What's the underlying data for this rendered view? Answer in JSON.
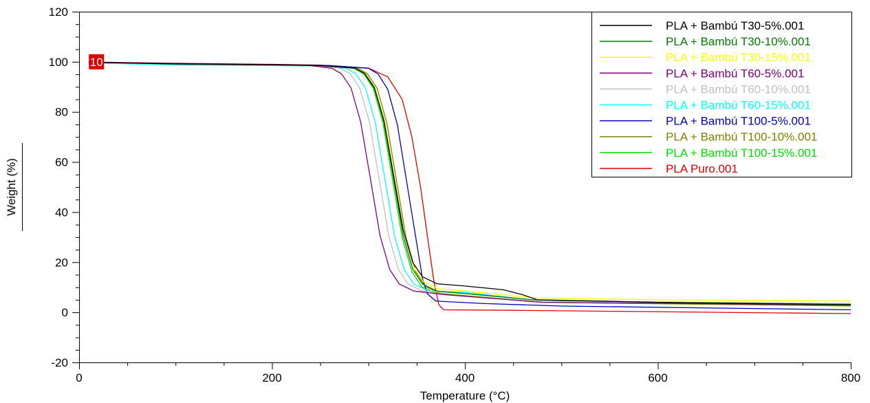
{
  "chart_data": {
    "type": "line",
    "title": "",
    "xlabel": "Temperature (°C)",
    "ylabel": "Weight (%)",
    "xlim": [
      0,
      800
    ],
    "ylim": [
      -20,
      120
    ],
    "xticks": [
      0,
      200,
      400,
      600,
      800
    ],
    "yticks": [
      -20,
      0,
      20,
      40,
      60,
      80,
      100,
      120
    ],
    "grid": false,
    "legend_position": "top-right",
    "annotation": {
      "text": "10",
      "x": 18,
      "y": 100,
      "color": "#e00000"
    },
    "series": [
      {
        "name": "PLA + Bambú T30-5%.001",
        "color": "#000000",
        "points": [
          [
            10,
            99.8
          ],
          [
            100,
            99.2
          ],
          [
            200,
            98.8
          ],
          [
            250,
            98.5
          ],
          [
            286,
            97.5
          ],
          [
            296,
            95.4
          ],
          [
            306,
            89.8
          ],
          [
            316,
            76.6
          ],
          [
            326,
            54.8
          ],
          [
            336,
            32.9
          ],
          [
            346,
            19.8
          ],
          [
            356,
            14.2
          ],
          [
            371,
            11.4
          ],
          [
            400,
            10.5
          ],
          [
            440,
            9
          ],
          [
            460,
            7
          ],
          [
            475,
            5
          ],
          [
            600,
            4
          ],
          [
            800,
            3
          ]
        ]
      },
      {
        "name": "PLA + Bambú T30-10%.001",
        "color": "#007a00",
        "points": [
          [
            10,
            99.8
          ],
          [
            100,
            99.1
          ],
          [
            200,
            98.7
          ],
          [
            250,
            98.5
          ],
          [
            286,
            97.4
          ],
          [
            296,
            95.2
          ],
          [
            306,
            89.5
          ],
          [
            316,
            75.9
          ],
          [
            326,
            53.3
          ],
          [
            336,
            30.6
          ],
          [
            346,
            17.1
          ],
          [
            356,
            11.3
          ],
          [
            371,
            8.5
          ],
          [
            400,
            7.5
          ],
          [
            470,
            5
          ],
          [
            600,
            4
          ],
          [
            800,
            3.2
          ]
        ]
      },
      {
        "name": "PLA + Bambú T30-15%.001",
        "color": "#ffff00",
        "points": [
          [
            10,
            99.8
          ],
          [
            100,
            99.1
          ],
          [
            200,
            98.7
          ],
          [
            250,
            98.5
          ],
          [
            287,
            97.4
          ],
          [
            297,
            95.3
          ],
          [
            307,
            89.6
          ],
          [
            317,
            76.1
          ],
          [
            327,
            53.8
          ],
          [
            337,
            31.4
          ],
          [
            347,
            18
          ],
          [
            357,
            12.2
          ],
          [
            372,
            9.4
          ],
          [
            400,
            8.5
          ],
          [
            470,
            5.8
          ],
          [
            600,
            5
          ],
          [
            800,
            4.5
          ]
        ]
      },
      {
        "name": "PLA + Bambú T60-5%.001",
        "color": "#800080",
        "points": [
          [
            10,
            99.9
          ],
          [
            100,
            99.3
          ],
          [
            200,
            98.8
          ],
          [
            240,
            98.5
          ],
          [
            262,
            97.4
          ],
          [
            272,
            95.2
          ],
          [
            282,
            89.5
          ],
          [
            292,
            75.9
          ],
          [
            302,
            53.3
          ],
          [
            312,
            30.6
          ],
          [
            322,
            17.1
          ],
          [
            332,
            11.3
          ],
          [
            347,
            8.5
          ],
          [
            380,
            7
          ],
          [
            480,
            4
          ],
          [
            800,
            3
          ]
        ]
      },
      {
        "name": "PLA + Bambú T60-10%.001",
        "color": "#c0c0c0",
        "points": [
          [
            10,
            99.8
          ],
          [
            100,
            99
          ],
          [
            200,
            98.6
          ],
          [
            245,
            98.5
          ],
          [
            271,
            97.4
          ],
          [
            281,
            95.2
          ],
          [
            291,
            89.5
          ],
          [
            301,
            75.9
          ],
          [
            311,
            53.3
          ],
          [
            321,
            30.6
          ],
          [
            331,
            17.1
          ],
          [
            341,
            11.3
          ],
          [
            356,
            8.5
          ],
          [
            400,
            7.5
          ],
          [
            480,
            4.5
          ],
          [
            800,
            3.5
          ]
        ]
      },
      {
        "name": "PLA + Bambú T60-15%.001",
        "color": "#00ffff",
        "points": [
          [
            10,
            99.6
          ],
          [
            100,
            98.7
          ],
          [
            200,
            98.5
          ],
          [
            250,
            98.3
          ],
          [
            277,
            97.4
          ],
          [
            287,
            95.2
          ],
          [
            297,
            89.5
          ],
          [
            307,
            75.9
          ],
          [
            317,
            53.3
          ],
          [
            327,
            30.6
          ],
          [
            337,
            17.1
          ],
          [
            347,
            11.3
          ],
          [
            362,
            8.5
          ],
          [
            400,
            8
          ],
          [
            480,
            4.5
          ],
          [
            800,
            3.5
          ]
        ]
      },
      {
        "name": "PLA + Bambú T100-5%.001",
        "color": "#0000c0",
        "points": [
          [
            10,
            99.8
          ],
          [
            100,
            99.3
          ],
          [
            200,
            98.9
          ],
          [
            260,
            98.5
          ],
          [
            300,
            97.4
          ],
          [
            310,
            95.1
          ],
          [
            320,
            89
          ],
          [
            330,
            74.9
          ],
          [
            340,
            51.3
          ],
          [
            350,
            27.6
          ],
          [
            356,
            13.5
          ],
          [
            361,
            7.4
          ],
          [
            370,
            4.5
          ],
          [
            420,
            3.5
          ],
          [
            500,
            2.5
          ],
          [
            800,
            1
          ]
        ]
      },
      {
        "name": "PLA + Bambú T100-10%.001",
        "color": "#808000",
        "points": [
          [
            10,
            99.8
          ],
          [
            100,
            99.1
          ],
          [
            200,
            98.7
          ],
          [
            250,
            98.5
          ],
          [
            289,
            97.4
          ],
          [
            299,
            95.2
          ],
          [
            309,
            89.4
          ],
          [
            319,
            75.6
          ],
          [
            329,
            52.8
          ],
          [
            339,
            29.9
          ],
          [
            349,
            16.2
          ],
          [
            359,
            10.3
          ],
          [
            374,
            7.5
          ],
          [
            420,
            6
          ],
          [
            480,
            4
          ],
          [
            800,
            2.5
          ]
        ]
      },
      {
        "name": "PLA + Bambú T100-15%.001",
        "color": "#00e000",
        "points": [
          [
            10,
            99.7
          ],
          [
            100,
            99
          ],
          [
            200,
            98.6
          ],
          [
            250,
            98.4
          ],
          [
            285,
            97.4
          ],
          [
            295,
            95.2
          ],
          [
            305,
            89.4
          ],
          [
            315,
            75.6
          ],
          [
            325,
            52.8
          ],
          [
            335,
            29.9
          ],
          [
            345,
            16.2
          ],
          [
            355,
            10.3
          ],
          [
            370,
            7.5
          ],
          [
            420,
            6
          ],
          [
            480,
            4
          ],
          [
            800,
            2.7
          ]
        ]
      },
      {
        "name": "PLA Puro.001",
        "color": "#e00000",
        "points": [
          [
            10,
            99.9
          ],
          [
            100,
            99.4
          ],
          [
            200,
            99
          ],
          [
            250,
            98.7
          ],
          [
            300,
            97.5
          ],
          [
            320,
            94
          ],
          [
            335,
            85
          ],
          [
            345,
            70
          ],
          [
            354,
            50
          ],
          [
            362,
            28
          ],
          [
            368,
            12
          ],
          [
            373,
            3
          ],
          [
            378,
            1
          ],
          [
            450,
            0.8
          ],
          [
            800,
            -0.5
          ]
        ]
      }
    ]
  }
}
